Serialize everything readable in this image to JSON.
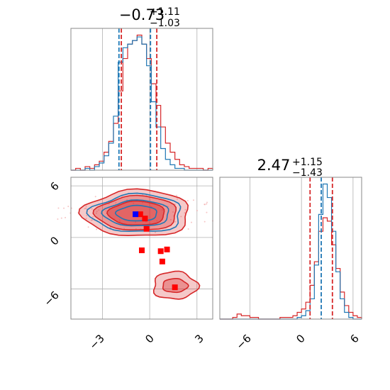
{
  "chart_data": {
    "type": "corner",
    "colors": {
      "blue": "#1f77b4",
      "red": "#d62728",
      "marker_red": "#ff0000",
      "marker_blue": "#0000ff",
      "grid": "#b0b0b0"
    },
    "panels": {
      "hist1": {
        "title": {
          "median": "−0.73",
          "plus": "+1.11",
          "minus": "−1.03"
        },
        "xlim": [
          -5,
          4
        ],
        "quantile_lines": {
          "blue": [
            -1.95,
            0.05
          ],
          "red": [
            -1.8,
            0.45
          ]
        },
        "bins": [
          -5.0,
          -4.7,
          -4.4,
          -4.1,
          -3.8,
          -3.5,
          -3.2,
          -2.9,
          -2.6,
          -2.3,
          -2.0,
          -1.7,
          -1.4,
          -1.1,
          -0.8,
          -0.5,
          -0.2,
          0.1,
          0.4,
          0.7,
          1.0,
          1.3,
          1.6,
          1.9,
          2.2,
          2.5,
          2.8,
          3.1,
          3.4,
          3.7,
          4.0
        ],
        "blue_counts": [
          0,
          0,
          0,
          1,
          0,
          2,
          4,
          8,
          15,
          30,
          60,
          68,
          70,
          72,
          74,
          70,
          58,
          38,
          24,
          12,
          6,
          3,
          1,
          1,
          0,
          0,
          0,
          0,
          0,
          0
        ],
        "red_counts": [
          0,
          1,
          0,
          2,
          1,
          3,
          5,
          10,
          16,
          26,
          44,
          62,
          70,
          72,
          75,
          70,
          62,
          48,
          36,
          24,
          15,
          10,
          6,
          3,
          2,
          1,
          1,
          1,
          0,
          1
        ]
      },
      "scatter": {
        "xlim": [
          -5,
          4
        ],
        "ylim": [
          -9.5,
          7
        ],
        "xticks": [
          -3,
          0,
          3
        ],
        "yticks": [
          6,
          0,
          -6
        ],
        "red_markers": [
          [
            -0.6,
            2.7
          ],
          [
            -0.3,
            2.2
          ],
          [
            -0.2,
            1.0
          ],
          [
            -0.5,
            -1.5
          ],
          [
            0.7,
            -1.6
          ],
          [
            1.1,
            -1.4
          ],
          [
            0.8,
            -2.8
          ],
          [
            1.6,
            -5.8
          ]
        ],
        "blue_marker": [
          -0.9,
          2.7
        ]
      },
      "hist2": {
        "title": {
          "median": "2.47",
          "plus": "+1.15",
          "minus": "−1.43"
        },
        "xlim": [
          -9.5,
          7
        ],
        "xticks": [
          -6,
          0,
          6
        ],
        "quantile_lines": {
          "blue": [
            2.3
          ],
          "red": [
            1.0,
            3.6
          ]
        },
        "bins": [
          -9.5,
          -9.0,
          -8.5,
          -8.0,
          -7.5,
          -7.0,
          -6.5,
          -6.0,
          -5.5,
          -5.0,
          -4.5,
          -4.0,
          -3.5,
          -3.0,
          -2.5,
          -2.0,
          -1.5,
          -1.0,
          -0.5,
          0.0,
          0.5,
          1.0,
          1.5,
          2.0,
          2.5,
          3.0,
          3.5,
          4.0,
          4.5,
          5.0,
          5.5,
          6.0,
          6.5,
          7.0
        ],
        "blue_counts": [
          0,
          0,
          0,
          0,
          0,
          0,
          0,
          0,
          0,
          0,
          0,
          0,
          0,
          0,
          0,
          0,
          0,
          0,
          1,
          2,
          5,
          12,
          32,
          62,
          80,
          72,
          52,
          28,
          12,
          4,
          1,
          0,
          0
        ],
        "red_counts": [
          0,
          0,
          0,
          1,
          3,
          2,
          2,
          1,
          1,
          0,
          0,
          0,
          0,
          0,
          1,
          1,
          1,
          2,
          4,
          6,
          10,
          20,
          34,
          52,
          60,
          58,
          44,
          30,
          16,
          8,
          4,
          2,
          1
        ]
      }
    }
  }
}
